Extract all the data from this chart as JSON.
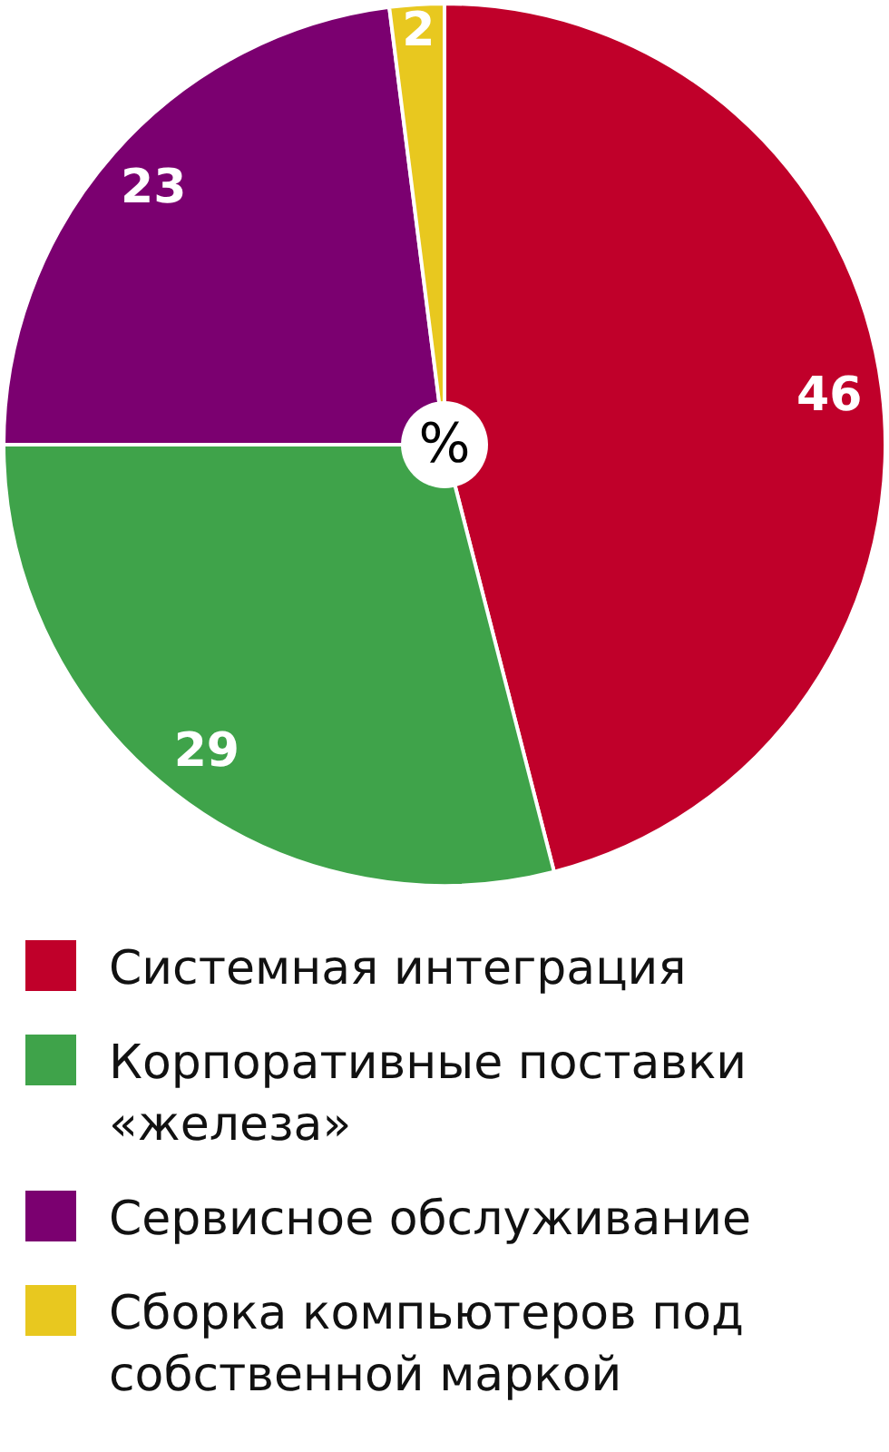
{
  "chart_data": {
    "type": "pie",
    "categories": [
      "Системная интеграция",
      "Корпоративные поставки «железа»",
      "Сервисное обслуживание",
      "Сборка компьютеров под собственной маркой"
    ],
    "values": [
      46,
      29,
      23,
      2
    ],
    "colors": [
      "#c0002a",
      "#3fa34a",
      "#7b0070",
      "#e8c81f"
    ],
    "data_labels": true,
    "legend": "bottom",
    "annotations": [
      "%"
    ]
  }
}
